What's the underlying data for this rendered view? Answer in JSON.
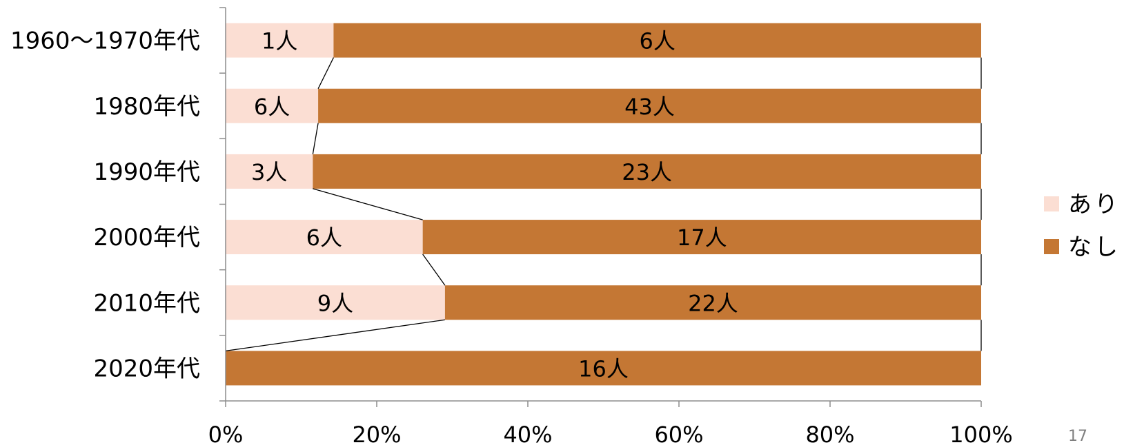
{
  "chart_data": {
    "type": "bar",
    "orientation": "horizontal",
    "stacked": "percent",
    "categories": [
      "1960〜1970年代",
      "1980年代",
      "1990年代",
      "2000年代",
      "2010年代",
      "2020年代"
    ],
    "series": [
      {
        "name": "あり",
        "values": [
          1,
          6,
          3,
          6,
          9,
          0
        ],
        "labels": [
          "1人",
          "6人",
          "3人",
          "6人",
          "9人",
          ""
        ],
        "color": "#FBDED3"
      },
      {
        "name": "なし",
        "values": [
          6,
          43,
          23,
          17,
          22,
          16
        ],
        "labels": [
          "6人",
          "43人",
          "23人",
          "17人",
          "22人",
          "16人"
        ],
        "color": "#C47734"
      }
    ],
    "xlim": [
      0,
      100
    ],
    "x_ticks": [
      "0%",
      "20%",
      "40%",
      "60%",
      "80%",
      "100%"
    ],
    "series_lines": true,
    "legend_position": "right",
    "grid": false
  },
  "page_number": "17"
}
